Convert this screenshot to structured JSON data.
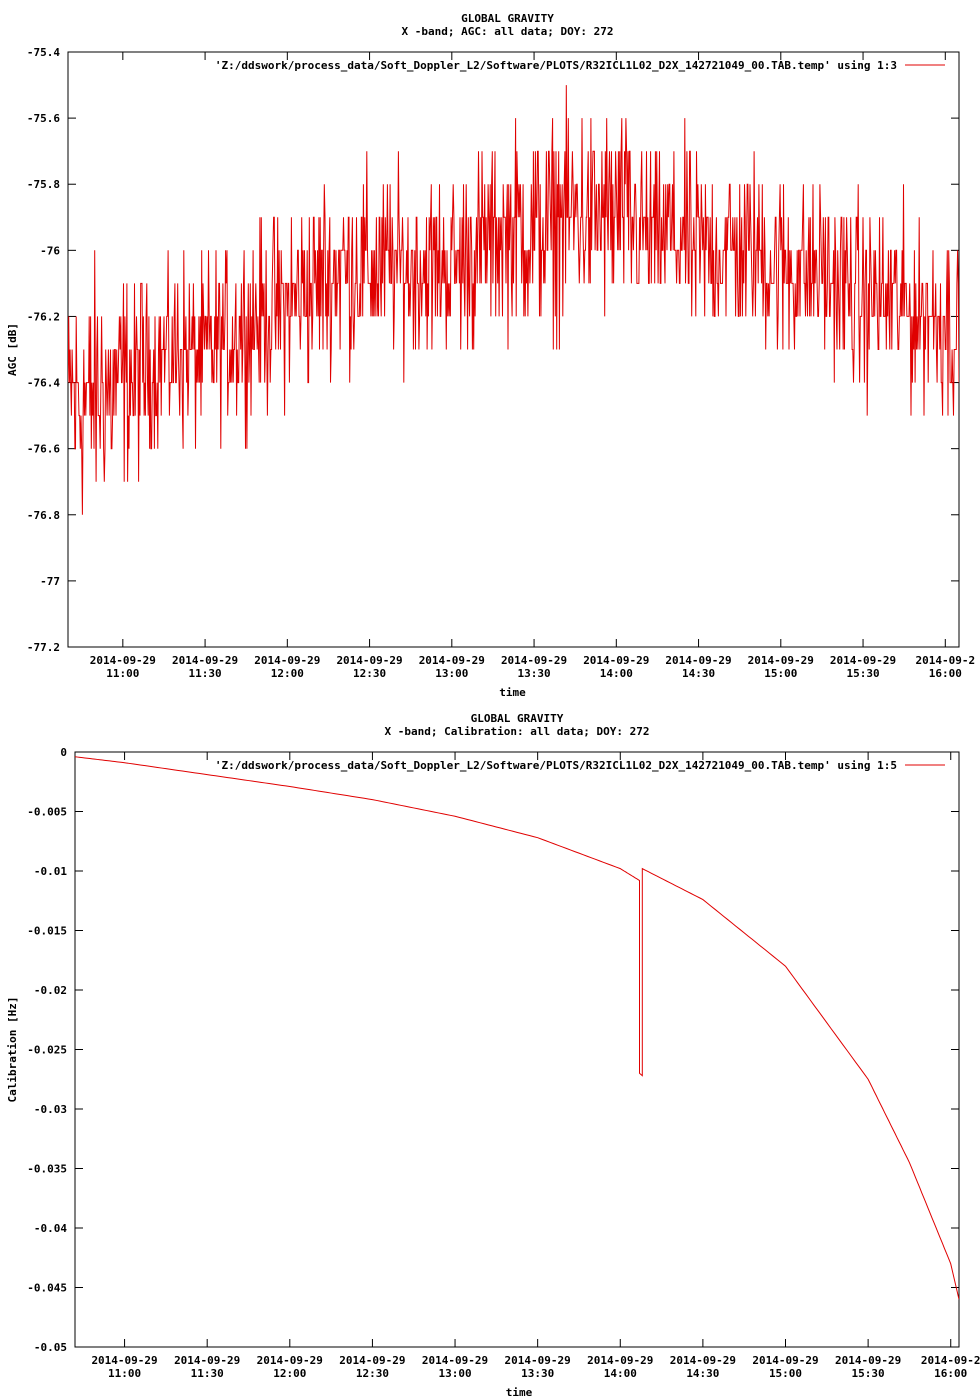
{
  "chart_data": [
    {
      "type": "line",
      "title": "GLOBAL GRAVITY",
      "subtitle": "X -band; AGC: all data; DOY: 272",
      "xlabel": "time",
      "ylabel": "AGC [dB]",
      "ylim": [
        -77.2,
        -75.4
      ],
      "y_ticks": [
        -75.4,
        -75.6,
        -75.8,
        -76,
        -76.2,
        -76.4,
        -76.6,
        -76.8,
        -77,
        -77.2
      ],
      "y_tick_labels": [
        "-75.4",
        "-75.6",
        "-75.8",
        "-76",
        "-76.2",
        "-76.4",
        "-76.6",
        "-76.8",
        "-77",
        "-77.2"
      ],
      "xlim": [
        "10:40",
        "16:05"
      ],
      "x_ticks": [
        "11:00",
        "11:30",
        "12:00",
        "12:30",
        "13:00",
        "13:30",
        "14:00",
        "14:30",
        "15:00",
        "15:30",
        "16:00"
      ],
      "x_tick_dates": [
        "2014-09-29",
        "2014-09-29",
        "2014-09-29",
        "2014-09-29",
        "2014-09-29",
        "2014-09-29",
        "2014-09-29",
        "2014-09-29",
        "2014-09-29",
        "2014-09-29",
        "2014-09-2"
      ],
      "grid": false,
      "legend_position": "top-right",
      "series": [
        {
          "name": "'Z:/ddswork/process_data/Soft_Doppler_L2/Software/PLOTS/R32ICL1L02_D2X_142721049_00.TAB.temp' using 1:3",
          "color": "#e00000",
          "x": [
            "10:40",
            "10:50",
            "11:00",
            "11:10",
            "11:20",
            "11:30",
            "11:40",
            "11:50",
            "12:00",
            "12:10",
            "12:20",
            "12:30",
            "12:40",
            "12:50",
            "13:00",
            "13:10",
            "13:20",
            "13:30",
            "13:40",
            "13:50",
            "14:00",
            "14:10",
            "14:20",
            "14:30",
            "14:40",
            "14:50",
            "15:00",
            "15:10",
            "15:20",
            "15:30",
            "15:40",
            "15:50",
            "16:00",
            "16:05"
          ],
          "mean": [
            -76.45,
            -76.45,
            -76.4,
            -76.35,
            -76.3,
            -76.3,
            -76.25,
            -76.2,
            -76.15,
            -76.1,
            -76.05,
            -76.05,
            -76.05,
            -76.05,
            -76.05,
            -76.0,
            -75.95,
            -75.95,
            -75.9,
            -75.9,
            -75.9,
            -75.95,
            -75.95,
            -76.0,
            -76.0,
            -76.0,
            -76.05,
            -76.05,
            -76.1,
            -76.15,
            -76.15,
            -76.2,
            -76.2,
            -76.25
          ],
          "spread": [
            0.3,
            0.35,
            0.3,
            0.25,
            0.25,
            0.25,
            0.25,
            0.25,
            0.25,
            0.25,
            0.25,
            0.25,
            0.25,
            0.25,
            0.25,
            0.25,
            0.25,
            0.3,
            0.3,
            0.3,
            0.3,
            0.25,
            0.25,
            0.25,
            0.25,
            0.25,
            0.25,
            0.25,
            0.25,
            0.25,
            0.25,
            0.25,
            0.25,
            0.25
          ]
        }
      ]
    },
    {
      "type": "line",
      "title": "GLOBAL GRAVITY",
      "subtitle": "X -band; Calibration: all data; DOY: 272",
      "xlabel": "time",
      "ylabel": "Calibration [Hz]",
      "ylim": [
        -0.05,
        0
      ],
      "y_ticks": [
        0,
        -0.005,
        -0.01,
        -0.015,
        -0.02,
        -0.025,
        -0.03,
        -0.035,
        -0.04,
        -0.045,
        -0.05
      ],
      "y_tick_labels": [
        "0",
        "-0.005",
        "-0.01",
        "-0.015",
        "-0.02",
        "-0.025",
        "-0.03",
        "-0.035",
        "-0.04",
        "-0.045",
        "-0.05"
      ],
      "xlim": [
        "10:42",
        "16:03"
      ],
      "x_ticks": [
        "11:00",
        "11:30",
        "12:00",
        "12:30",
        "13:00",
        "13:30",
        "14:00",
        "14:30",
        "15:00",
        "15:30",
        "16:00"
      ],
      "x_tick_dates": [
        "2014-09-29",
        "2014-09-29",
        "2014-09-29",
        "2014-09-29",
        "2014-09-29",
        "2014-09-29",
        "2014-09-29",
        "2014-09-29",
        "2014-09-29",
        "2014-09-29",
        "2014-09-2"
      ],
      "grid": false,
      "legend_position": "top-right",
      "series": [
        {
          "name": "'Z:/ddswork/process_data/Soft_Doppler_L2/Software/PLOTS/R32ICL1L02_D2X_142721049_00.TAB.temp' using 1:5",
          "color": "#e00000",
          "x": [
            "10:42",
            "11:00",
            "11:30",
            "12:00",
            "12:30",
            "13:00",
            "13:30",
            "14:00",
            "14:07",
            "14:07",
            "14:08",
            "14:08",
            "14:30",
            "15:00",
            "15:30",
            "15:45",
            "16:00",
            "16:03"
          ],
          "y": [
            -0.0004,
            -0.0009,
            -0.0019,
            -0.0029,
            -0.004,
            -0.0054,
            -0.0072,
            -0.0098,
            -0.0108,
            -0.027,
            -0.0272,
            -0.0098,
            -0.0124,
            -0.018,
            -0.0275,
            -0.0345,
            -0.043,
            -0.046
          ]
        }
      ]
    }
  ]
}
